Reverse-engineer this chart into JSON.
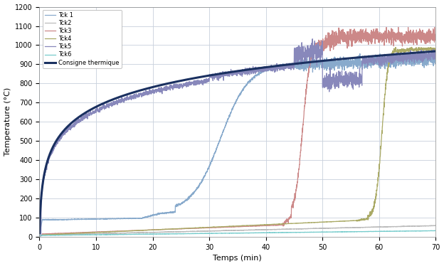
{
  "title": "",
  "xlabel": "Temps (min)",
  "ylabel": "Temperature (°C)",
  "xlim": [
    0,
    70
  ],
  "ylim": [
    0,
    1200
  ],
  "xticks": [
    0,
    10,
    20,
    30,
    40,
    50,
    60,
    70
  ],
  "yticks": [
    0,
    100,
    200,
    300,
    400,
    500,
    600,
    700,
    800,
    900,
    1000,
    1100,
    1200
  ],
  "series": [
    {
      "name": "Tck 1",
      "color": "#88aacc",
      "lw": 0.9
    },
    {
      "name": "Tck2",
      "color": "#bbbbbb",
      "lw": 0.9
    },
    {
      "name": "Tck3",
      "color": "#cc8888",
      "lw": 0.9
    },
    {
      "name": "Tck4",
      "color": "#aaaa66",
      "lw": 0.9
    },
    {
      "name": "Tck5",
      "color": "#8888bb",
      "lw": 0.9
    },
    {
      "name": "Tck6",
      "color": "#77cccc",
      "lw": 0.9
    },
    {
      "name": "Consigne thermique",
      "color": "#1a3060",
      "lw": 2.2
    }
  ],
  "bg_color": "#ffffff",
  "grid_color": "#c8d0dc",
  "figsize": [
    6.24,
    3.74
  ],
  "dpi": 100
}
